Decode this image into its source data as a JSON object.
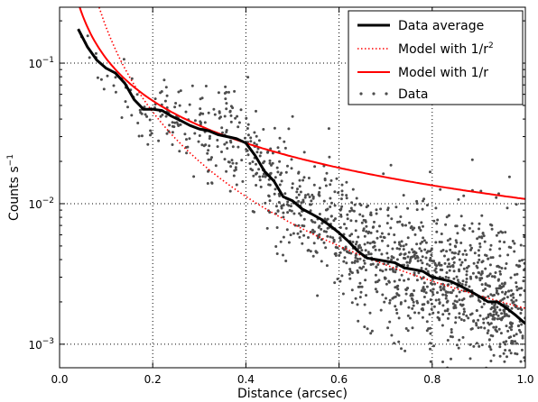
{
  "chart_data": {
    "type": "line",
    "xlabel": "Distance (arcsec)",
    "ylabel": "Counts s",
    "ylabel_sup": "−1",
    "xlim": [
      0.0,
      1.0
    ],
    "ylim": [
      0.00068,
      0.25
    ],
    "yscale": "log",
    "grid": true,
    "grid_style": "dotted",
    "legend_position": "top-right",
    "x_ticks": [
      "0.0",
      "0.2",
      "0.4",
      "0.6",
      "0.8",
      "1.0"
    ],
    "y_ticks": [
      {
        "base": "10",
        "exp": "−1",
        "value": 0.1
      },
      {
        "base": "10",
        "exp": "−2",
        "value": 0.01
      },
      {
        "base": "10",
        "exp": "−3",
        "value": 0.001
      }
    ],
    "series": [
      {
        "name": "Data average",
        "style": "solid-thick",
        "color": "#000000",
        "x": [
          0.04,
          0.06,
          0.08,
          0.1,
          0.12,
          0.14,
          0.16,
          0.18,
          0.2,
          0.22,
          0.24,
          0.26,
          0.28,
          0.3,
          0.32,
          0.34,
          0.36,
          0.38,
          0.4,
          0.42,
          0.44,
          0.46,
          0.48,
          0.5,
          0.52,
          0.54,
          0.56,
          0.58,
          0.6,
          0.62,
          0.64,
          0.66,
          0.68,
          0.7,
          0.72,
          0.74,
          0.76,
          0.78,
          0.8,
          0.82,
          0.84,
          0.86,
          0.88,
          0.9,
          0.92,
          0.94,
          0.96,
          0.98,
          1.0
        ],
        "y": [
          0.175,
          0.13,
          0.105,
          0.092,
          0.085,
          0.072,
          0.055,
          0.047,
          0.047,
          0.046,
          0.042,
          0.039,
          0.036,
          0.034,
          0.033,
          0.031,
          0.03,
          0.029,
          0.027,
          0.022,
          0.017,
          0.0145,
          0.0112,
          0.0105,
          0.0092,
          0.0085,
          0.0078,
          0.007,
          0.0062,
          0.0054,
          0.0046,
          0.0041,
          0.004,
          0.0039,
          0.0038,
          0.0035,
          0.0034,
          0.0033,
          0.003,
          0.0029,
          0.0028,
          0.0026,
          0.0024,
          0.0022,
          0.002,
          0.002,
          0.0018,
          0.0016,
          0.0014
        ]
      },
      {
        "name": "Model with 1/r",
        "name_sup": "2",
        "style": "dotted",
        "color": "#ff0000",
        "model": "inverse_square",
        "k": 0.0018,
        "x_range": [
          0.03,
          1.0
        ]
      },
      {
        "name": "Model with 1/r",
        "style": "solid",
        "color": "#ff0000",
        "model": "inverse",
        "k": 0.0108,
        "x_range": [
          0.03,
          1.0
        ]
      },
      {
        "name": "Data",
        "style": "points",
        "color": "#4d4d4d",
        "x_range": [
          0.04,
          1.0
        ],
        "count": 1400
      }
    ]
  }
}
